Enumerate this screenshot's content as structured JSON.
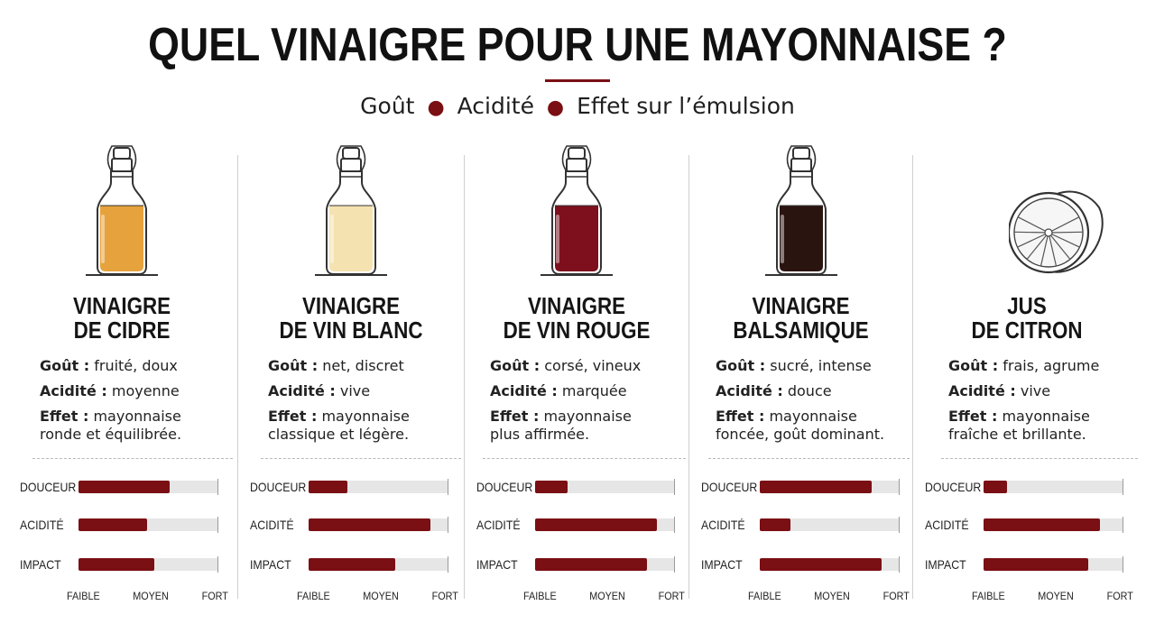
{
  "title": "QUEL VINAIGRE POUR UNE MAYONNAISE ?",
  "subtitle": {
    "items": [
      "Goût",
      "Acidité",
      "Effet sur l’émulsion"
    ]
  },
  "colors": {
    "accent": "#7a0f14",
    "track": "#e6e6e6"
  },
  "chart_data": {
    "type": "bar",
    "orientation": "horizontal",
    "categories": [
      "DOUCEUR",
      "ACIDITÉ",
      "IMPACT"
    ],
    "scale_labels": [
      "FAIBLE",
      "MOYEN",
      "FORT"
    ],
    "scale_range": [
      0,
      1
    ],
    "series": [
      {
        "name": "VINAIGRE DE CIDRE",
        "values": [
          0.65,
          0.49,
          0.54
        ]
      },
      {
        "name": "VINAIGRE DE VIN BLANC",
        "values": [
          0.28,
          0.87,
          0.62
        ]
      },
      {
        "name": "VINAIGRE DE VIN ROUGE",
        "values": [
          0.23,
          0.87,
          0.8
        ]
      },
      {
        "name": "VINAIGRE BALSAMIQUE",
        "values": [
          0.8,
          0.22,
          0.87
        ]
      },
      {
        "name": "JUS DE CITRON",
        "values": [
          0.17,
          0.83,
          0.75
        ]
      }
    ]
  },
  "columns": [
    {
      "name_line1": "VINAIGRE",
      "name_line2": "DE CIDRE",
      "illustration": "bottle-icon",
      "liquid_color": "#e6a23c",
      "gout_label": "Goût :",
      "gout": "fruité, doux",
      "acidite_label": "Acidité :",
      "acidite": "moyenne",
      "effet_label": "Effet :",
      "effet_1": "mayonnaise",
      "effet_2": "ronde et équilibrée."
    },
    {
      "name_line1": "VINAIGRE",
      "name_line2": "DE VIN BLANC",
      "illustration": "bottle-icon",
      "liquid_color": "#f4e2b0",
      "gout_label": "Goût :",
      "gout": "net, discret",
      "acidite_label": "Acidité :",
      "acidite": "vive",
      "effet_label": "Effet :",
      "effet_1": "mayonnaise",
      "effet_2": "classique et légère."
    },
    {
      "name_line1": "VINAIGRE",
      "name_line2": "DE VIN ROUGE",
      "illustration": "bottle-icon",
      "liquid_color": "#7e0f1c",
      "gout_label": "Goût :",
      "gout": "corsé, vineux",
      "acidite_label": "Acidité :",
      "acidite": "marquée",
      "effet_label": "Effet :",
      "effet_1": "mayonnaise",
      "effet_2": "plus affirmée."
    },
    {
      "name_line1": "VINAIGRE",
      "name_line2": "BALSAMIQUE",
      "illustration": "bottle-icon",
      "liquid_color": "#2a1410",
      "gout_label": "Goût :",
      "gout": "sucré, intense",
      "acidite_label": "Acidité :",
      "acidite": "douce",
      "effet_label": "Effet :",
      "effet_1": "mayonnaise",
      "effet_2": "foncée, goût dominant."
    },
    {
      "name_line1": "JUS",
      "name_line2": "DE CITRON",
      "illustration": "lemon-half-icon",
      "liquid_color": "",
      "gout_label": "Goût :",
      "gout": "frais, agrume",
      "acidite_label": "Acidité :",
      "acidite": "vive",
      "effet_label": "Effet :",
      "effet_1": "mayonnaise",
      "effet_2": "fraîche et brillante."
    }
  ]
}
